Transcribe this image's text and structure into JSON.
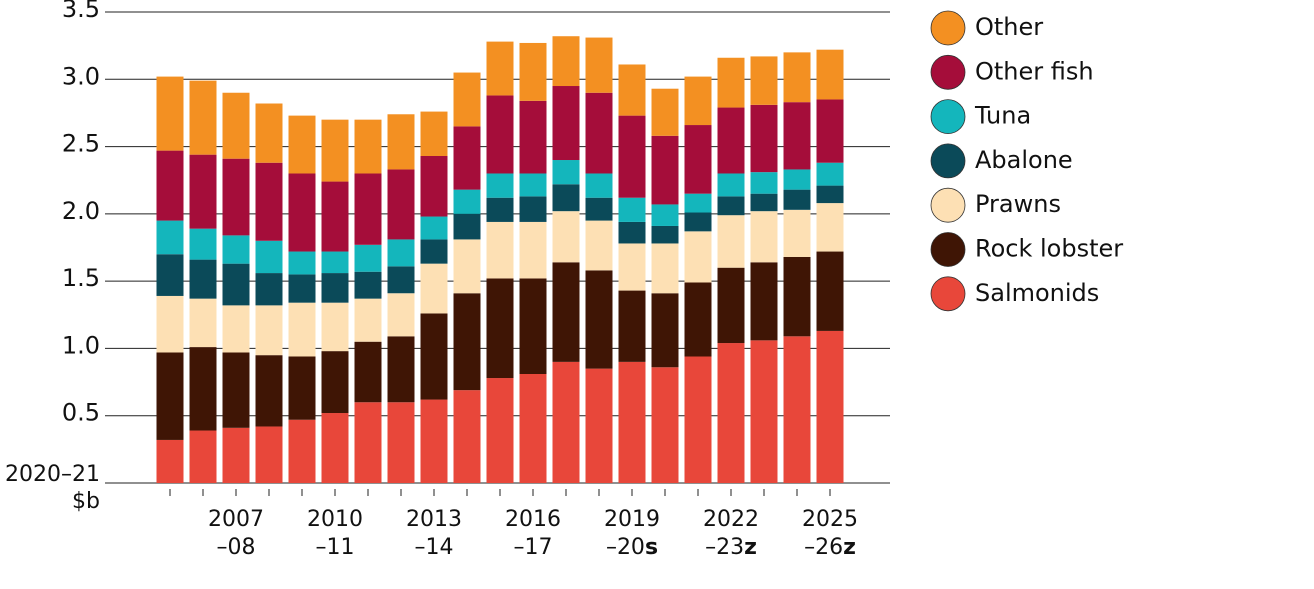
{
  "chart_data": {
    "type": "stacked_bar",
    "y_label": "2020–21\n$b",
    "categories": [
      null,
      null,
      "2007\n–08",
      null,
      null,
      "2010\n–11",
      null,
      null,
      "2013\n–14",
      null,
      null,
      "2016\n–17",
      null,
      null,
      "2019\n–20s",
      null,
      null,
      "2022\n–23z",
      null,
      null,
      "2025\n–26z"
    ],
    "series": [
      {
        "name": "Salmonids",
        "color": "#e8473a",
        "values": [
          0.32,
          0.39,
          0.41,
          0.42,
          0.47,
          0.52,
          0.6,
          0.6,
          0.62,
          0.69,
          0.78,
          0.81,
          0.9,
          0.85,
          0.9,
          0.86,
          0.94,
          1.04,
          1.06,
          1.09,
          1.13
        ]
      },
      {
        "name": "Rock lobster",
        "color": "#3f1505",
        "values": [
          0.65,
          0.62,
          0.56,
          0.53,
          0.47,
          0.46,
          0.45,
          0.49,
          0.64,
          0.72,
          0.74,
          0.71,
          0.74,
          0.73,
          0.53,
          0.55,
          0.55,
          0.56,
          0.58,
          0.59,
          0.59
        ]
      },
      {
        "name": "Prawns",
        "color": "#fde0b4",
        "values": [
          0.42,
          0.36,
          0.35,
          0.37,
          0.4,
          0.36,
          0.32,
          0.32,
          0.37,
          0.4,
          0.42,
          0.42,
          0.38,
          0.37,
          0.35,
          0.37,
          0.38,
          0.39,
          0.38,
          0.35,
          0.36
        ]
      },
      {
        "name": "Abalone",
        "color": "#0b4a59",
        "values": [
          0.31,
          0.29,
          0.31,
          0.24,
          0.21,
          0.22,
          0.2,
          0.2,
          0.18,
          0.19,
          0.18,
          0.19,
          0.2,
          0.17,
          0.16,
          0.13,
          0.14,
          0.14,
          0.13,
          0.15,
          0.13
        ]
      },
      {
        "name": "Tuna",
        "color": "#14b6bc",
        "values": [
          0.25,
          0.23,
          0.21,
          0.24,
          0.17,
          0.16,
          0.2,
          0.2,
          0.17,
          0.18,
          0.18,
          0.17,
          0.18,
          0.18,
          0.18,
          0.16,
          0.14,
          0.17,
          0.16,
          0.15,
          0.17
        ]
      },
      {
        "name": "Other fish",
        "color": "#a50d3a",
        "values": [
          0.52,
          0.55,
          0.57,
          0.58,
          0.58,
          0.52,
          0.53,
          0.52,
          0.45,
          0.47,
          0.58,
          0.54,
          0.55,
          0.6,
          0.61,
          0.51,
          0.51,
          0.49,
          0.5,
          0.5,
          0.47
        ]
      },
      {
        "name": "Other",
        "color": "#f39022",
        "values": [
          0.55,
          0.55,
          0.49,
          0.44,
          0.43,
          0.46,
          0.4,
          0.41,
          0.33,
          0.4,
          0.4,
          0.43,
          0.37,
          0.41,
          0.38,
          0.35,
          0.36,
          0.37,
          0.36,
          0.37,
          0.37
        ]
      }
    ],
    "ylim": [
      0,
      3.5
    ],
    "yticks": [
      0.5,
      {
        "value": 1.0,
        "label": "1.0"
      },
      1.5,
      {
        "value": 2.0,
        "label": "2.0"
      },
      2.5,
      {
        "value": 3.0,
        "label": "3.0"
      },
      3.5
    ],
    "grid": true,
    "legend": "right"
  }
}
